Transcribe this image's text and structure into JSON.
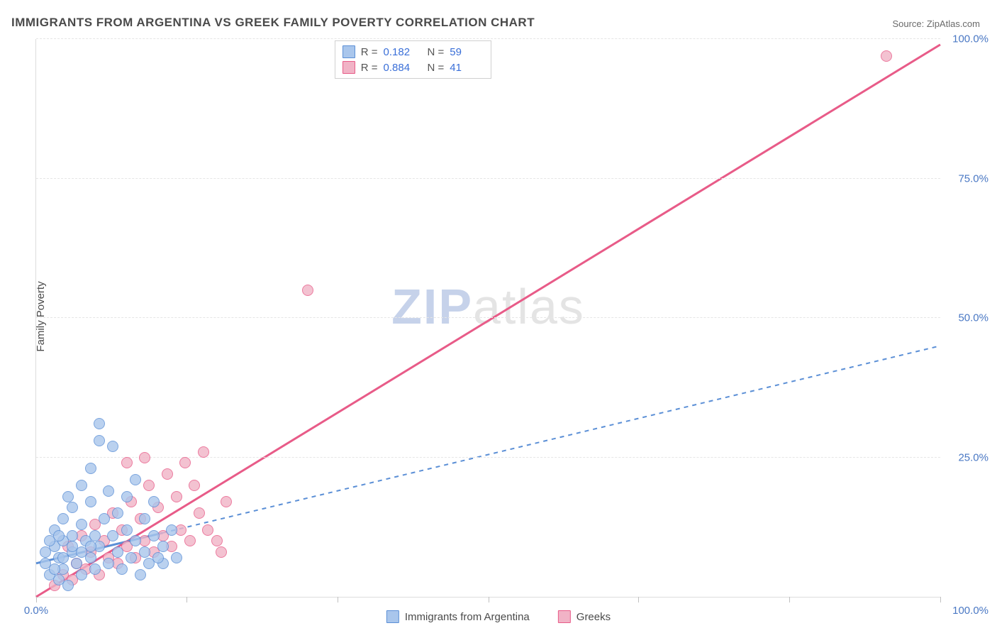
{
  "title": "IMMIGRANTS FROM ARGENTINA VS GREEK FAMILY POVERTY CORRELATION CHART",
  "source_label": "Source: ",
  "source_name": "ZipAtlas.com",
  "ylabel": "Family Poverty",
  "watermark_a": "ZIP",
  "watermark_b": "atlas",
  "chart": {
    "type": "scatter",
    "xlim": [
      0,
      100
    ],
    "ylim": [
      0,
      100
    ],
    "xticks": [
      0,
      16.6,
      33.3,
      50,
      66.6,
      83.3,
      100
    ],
    "yticks": [
      25,
      50,
      75,
      100
    ],
    "ytick_labels": [
      "25.0%",
      "50.0%",
      "75.0%",
      "100.0%"
    ],
    "xtick_min_label": "0.0%",
    "xtick_max_label": "100.0%",
    "grid_color": "#e6e6e6",
    "axis_color": "#dcdcdc",
    "background_color": "#ffffff",
    "tick_label_color": "#4a78c4",
    "tick_label_fontsize": 15,
    "label_fontsize": 15,
    "title_fontsize": 17,
    "marker_radius": 8,
    "marker_stroke_width": 1.5,
    "marker_fill_opacity": 0.35,
    "series": [
      {
        "name": "Immigrants from Argentina",
        "color_stroke": "#5b8fd6",
        "color_fill": "#a9c6ec",
        "r": 0.182,
        "n": 59,
        "regression": {
          "x1": 0,
          "y1": 6,
          "x2": 100,
          "y2": 45,
          "dash": "6,6",
          "width": 2,
          "solid_until_x": 14
        },
        "points": [
          [
            1,
            6
          ],
          [
            1,
            8
          ],
          [
            1.5,
            4
          ],
          [
            2,
            9
          ],
          [
            2,
            12
          ],
          [
            2.5,
            3
          ],
          [
            2.5,
            7
          ],
          [
            3,
            14
          ],
          [
            3,
            5
          ],
          [
            3,
            10
          ],
          [
            3.5,
            18
          ],
          [
            3.5,
            2
          ],
          [
            4,
            8
          ],
          [
            4,
            11
          ],
          [
            4,
            16
          ],
          [
            4.5,
            6
          ],
          [
            5,
            20
          ],
          [
            5,
            13
          ],
          [
            5,
            4
          ],
          [
            5.5,
            10
          ],
          [
            6,
            7
          ],
          [
            6,
            17
          ],
          [
            6,
            23
          ],
          [
            6.5,
            11
          ],
          [
            6.5,
            5
          ],
          [
            7,
            9
          ],
          [
            7,
            28
          ],
          [
            7,
            31
          ],
          [
            7.5,
            14
          ],
          [
            8,
            6
          ],
          [
            8,
            19
          ],
          [
            8.5,
            11
          ],
          [
            8.5,
            27
          ],
          [
            9,
            8
          ],
          [
            9,
            15
          ],
          [
            9.5,
            5
          ],
          [
            10,
            12
          ],
          [
            10,
            18
          ],
          [
            10.5,
            7
          ],
          [
            11,
            10
          ],
          [
            11,
            21
          ],
          [
            11.5,
            4
          ],
          [
            12,
            14
          ],
          [
            12,
            8
          ],
          [
            12.5,
            6
          ],
          [
            13,
            11
          ],
          [
            13,
            17
          ],
          [
            14,
            9
          ],
          [
            14,
            6
          ],
          [
            15,
            12
          ],
          [
            15.5,
            7
          ],
          [
            13.5,
            7
          ],
          [
            2,
            5
          ],
          [
            3,
            7
          ],
          [
            4,
            9
          ],
          [
            5,
            8
          ],
          [
            1.5,
            10
          ],
          [
            2.5,
            11
          ],
          [
            6,
            9
          ]
        ]
      },
      {
        "name": "Greeks",
        "color_stroke": "#e85b88",
        "color_fill": "#f1b3c6",
        "r": 0.884,
        "n": 41,
        "regression": {
          "x1": 0,
          "y1": 0,
          "x2": 100,
          "y2": 99,
          "dash": "none",
          "width": 3
        },
        "points": [
          [
            2,
            2
          ],
          [
            3,
            4
          ],
          [
            3.5,
            9
          ],
          [
            4,
            3
          ],
          [
            4.5,
            6
          ],
          [
            5,
            11
          ],
          [
            5.5,
            5
          ],
          [
            6,
            8
          ],
          [
            6.5,
            13
          ],
          [
            7,
            4
          ],
          [
            7.5,
            10
          ],
          [
            8,
            7
          ],
          [
            8.5,
            15
          ],
          [
            9,
            6
          ],
          [
            9.5,
            12
          ],
          [
            10,
            9
          ],
          [
            10.5,
            17
          ],
          [
            11,
            7
          ],
          [
            11.5,
            14
          ],
          [
            12,
            10
          ],
          [
            12.5,
            20
          ],
          [
            13,
            8
          ],
          [
            13.5,
            16
          ],
          [
            14,
            11
          ],
          [
            14.5,
            22
          ],
          [
            15,
            9
          ],
          [
            15.5,
            18
          ],
          [
            16,
            12
          ],
          [
            16.5,
            24
          ],
          [
            17,
            10
          ],
          [
            17.5,
            20
          ],
          [
            18,
            15
          ],
          [
            18.5,
            26
          ],
          [
            19,
            12
          ],
          [
            10,
            24
          ],
          [
            12,
            25
          ],
          [
            20,
            10
          ],
          [
            20.5,
            8
          ],
          [
            21,
            17
          ],
          [
            30,
            55
          ],
          [
            94,
            97
          ]
        ]
      }
    ]
  },
  "legend_corr": {
    "r_label": "R  =",
    "n_label": "N  ="
  },
  "legend_bottom": {
    "series1_label": "Immigrants from Argentina",
    "series2_label": "Greeks"
  }
}
